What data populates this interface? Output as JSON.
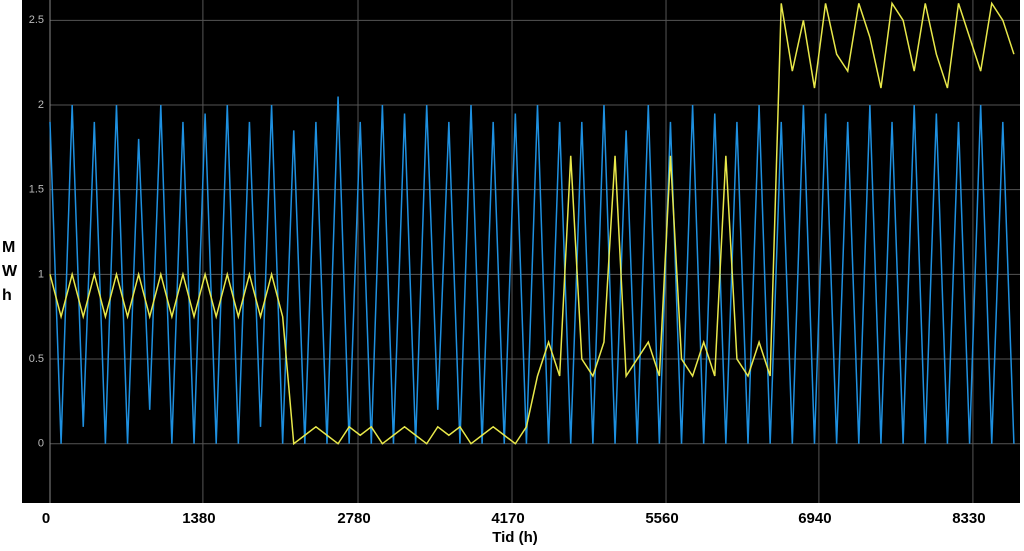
{
  "chart_data": {
    "type": "line",
    "xlabel": "Tid (h)",
    "ylabel": "MWh",
    "xlim": [
      0,
      8755
    ],
    "ylim": [
      -0.35,
      2.62
    ],
    "xticks": [
      0,
      1380,
      2780,
      4170,
      5560,
      6940,
      8330
    ],
    "yticks": [
      0,
      0.5,
      1,
      1.5,
      2,
      2.5
    ],
    "grid": true,
    "x": [
      0,
      100,
      200,
      300,
      400,
      500,
      600,
      700,
      800,
      900,
      1000,
      1100,
      1200,
      1300,
      1400,
      1500,
      1600,
      1700,
      1800,
      1900,
      2000,
      2100,
      2200,
      2300,
      2400,
      2500,
      2600,
      2700,
      2800,
      2900,
      3000,
      3100,
      3200,
      3300,
      3400,
      3500,
      3600,
      3700,
      3800,
      3900,
      4000,
      4100,
      4200,
      4300,
      4400,
      4500,
      4600,
      4700,
      4800,
      4900,
      5000,
      5100,
      5200,
      5300,
      5400,
      5500,
      5600,
      5700,
      5800,
      5900,
      6000,
      6100,
      6200,
      6300,
      6400,
      6500,
      6600,
      6700,
      6800,
      6900,
      7000,
      7100,
      7200,
      7300,
      7400,
      7500,
      7600,
      7700,
      7800,
      7900,
      8000,
      8100,
      8200,
      8300,
      8400,
      8500,
      8600,
      8700
    ],
    "series": [
      {
        "color": "#1e90e0",
        "values": [
          1.9,
          0,
          2.0,
          0.1,
          1.9,
          0,
          2.0,
          0,
          1.8,
          0.2,
          2.0,
          0,
          1.9,
          0,
          1.95,
          0,
          2.0,
          0,
          1.9,
          0.1,
          2.0,
          0,
          1.85,
          0,
          1.9,
          0,
          2.05,
          0,
          1.9,
          0,
          2.0,
          0,
          1.95,
          0,
          2.0,
          0.2,
          1.9,
          0,
          2.0,
          0,
          1.9,
          0,
          1.95,
          0,
          2.0,
          0,
          1.9,
          0,
          1.9,
          0,
          2.0,
          0,
          1.85,
          0,
          2.0,
          0,
          1.9,
          0,
          2.0,
          0,
          1.95,
          0,
          1.9,
          0,
          2.0,
          0,
          1.9,
          0,
          2.0,
          0,
          1.95,
          0,
          1.9,
          0,
          2.0,
          0,
          1.9,
          0,
          2.0,
          0,
          1.95,
          0,
          1.9,
          0,
          2.0,
          0,
          1.9,
          0
        ]
      },
      {
        "color": "#e8e84a",
        "values": [
          1,
          0.75,
          1,
          0.75,
          1,
          0.75,
          1,
          0.75,
          1,
          0.75,
          1,
          0.75,
          1,
          0.75,
          1,
          0.75,
          1,
          0.75,
          1,
          0.75,
          1,
          0.75,
          0,
          0.05,
          0.1,
          0.05,
          0,
          0.1,
          0.05,
          0.1,
          0,
          0.05,
          0.1,
          0.05,
          0,
          0.1,
          0.05,
          0.1,
          0,
          0.05,
          0.1,
          0.05,
          0,
          0.1,
          0.4,
          0.6,
          0.4,
          1.7,
          0.5,
          0.4,
          0.6,
          1.7,
          0.4,
          0.5,
          0.6,
          0.4,
          1.7,
          0.5,
          0.4,
          0.6,
          0.4,
          1.7,
          0.5,
          0.4,
          0.6,
          0.4,
          2.6,
          2.2,
          2.5,
          2.1,
          2.6,
          2.3,
          2.2,
          2.6,
          2.4,
          2.1,
          2.6,
          2.5,
          2.2,
          2.6,
          2.3,
          2.1,
          2.6,
          2.4,
          2.2,
          2.6,
          2.5,
          2.3
        ]
      }
    ]
  }
}
